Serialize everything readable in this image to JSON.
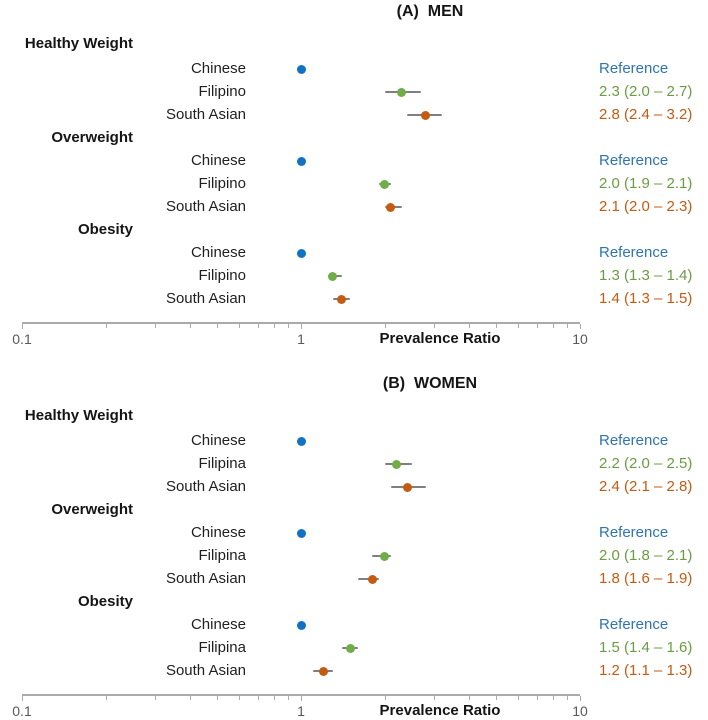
{
  "colors": {
    "chinese_dot": "#1072c4",
    "chinese_text": "#2e74b5",
    "filipino_dot": "#70ad47",
    "filipino_text": "#6b9c44",
    "south_asian_dot": "#c55a11",
    "south_asian_text": "#c55a11",
    "ci_line": "#7f7f7f",
    "axis_line": "#ababab",
    "axis_text": "#595959"
  },
  "chart_data": {
    "type": "scatter",
    "subtype": "forest-plot",
    "x_axis": {
      "scale": "log",
      "min": 0.1,
      "max": 10,
      "label": "Prevalence Ratio",
      "major_ticks": [
        0.1,
        1,
        10
      ],
      "tick_labels": [
        "0.1",
        "1",
        "10"
      ],
      "minor_ticks": [
        0.2,
        0.3,
        0.4,
        0.5,
        0.6,
        0.7,
        0.8,
        0.9,
        2,
        3,
        4,
        5,
        6,
        7,
        8,
        9
      ],
      "grid": false
    },
    "panels": [
      {
        "title": "(A)  MEN",
        "groups": [
          {
            "label": "Healthy Weight",
            "rows": [
              {
                "label": "Chinese",
                "series": "chinese",
                "reference": true,
                "estimate": 1.0,
                "value_text": "Reference"
              },
              {
                "label": "Filipino",
                "series": "filipino",
                "reference": false,
                "estimate": 2.3,
                "ci": [
                  2.0,
                  2.7
                ],
                "value_text": "2.3 (2.0 – 2.7)"
              },
              {
                "label": "South Asian",
                "series": "south_asian",
                "reference": false,
                "estimate": 2.8,
                "ci": [
                  2.4,
                  3.2
                ],
                "value_text": "2.8 (2.4 – 3.2)"
              }
            ]
          },
          {
            "label": "Overweight",
            "rows": [
              {
                "label": "Chinese",
                "series": "chinese",
                "reference": true,
                "estimate": 1.0,
                "value_text": "Reference"
              },
              {
                "label": "Filipino",
                "series": "filipino",
                "reference": false,
                "estimate": 2.0,
                "ci": [
                  1.9,
                  2.1
                ],
                "value_text": "2.0 (1.9 – 2.1)"
              },
              {
                "label": "South Asian",
                "series": "south_asian",
                "reference": false,
                "estimate": 2.1,
                "ci": [
                  2.0,
                  2.3
                ],
                "value_text": "2.1 (2.0 – 2.3)"
              }
            ]
          },
          {
            "label": "Obesity",
            "rows": [
              {
                "label": "Chinese",
                "series": "chinese",
                "reference": true,
                "estimate": 1.0,
                "value_text": "Reference"
              },
              {
                "label": "Filipino",
                "series": "filipino",
                "reference": false,
                "estimate": 1.3,
                "ci": [
                  1.3,
                  1.4
                ],
                "value_text": "1.3 (1.3 – 1.4)"
              },
              {
                "label": "South Asian",
                "series": "south_asian",
                "reference": false,
                "estimate": 1.4,
                "ci": [
                  1.3,
                  1.5
                ],
                "value_text": "1.4 (1.3 – 1.5)"
              }
            ]
          }
        ]
      },
      {
        "title": "(B)  WOMEN",
        "groups": [
          {
            "label": "Healthy Weight",
            "rows": [
              {
                "label": "Chinese",
                "series": "chinese",
                "reference": true,
                "estimate": 1.0,
                "value_text": "Reference"
              },
              {
                "label": "Filipina",
                "series": "filipino",
                "reference": false,
                "estimate": 2.2,
                "ci": [
                  2.0,
                  2.5
                ],
                "value_text": "2.2 (2.0 – 2.5)"
              },
              {
                "label": "South Asian",
                "series": "south_asian",
                "reference": false,
                "estimate": 2.4,
                "ci": [
                  2.1,
                  2.8
                ],
                "value_text": "2.4 (2.1 – 2.8)"
              }
            ]
          },
          {
            "label": "Overweight",
            "rows": [
              {
                "label": "Chinese",
                "series": "chinese",
                "reference": true,
                "estimate": 1.0,
                "value_text": "Reference"
              },
              {
                "label": "Filipina",
                "series": "filipino",
                "reference": false,
                "estimate": 2.0,
                "ci": [
                  1.8,
                  2.1
                ],
                "value_text": "2.0 (1.8 – 2.1)"
              },
              {
                "label": "South Asian",
                "series": "south_asian",
                "reference": false,
                "estimate": 1.8,
                "ci": [
                  1.6,
                  1.9
                ],
                "value_text": "1.8 (1.6 – 1.9)"
              }
            ]
          },
          {
            "label": "Obesity",
            "rows": [
              {
                "label": "Chinese",
                "series": "chinese",
                "reference": true,
                "estimate": 1.0,
                "value_text": "Reference"
              },
              {
                "label": "Filipina",
                "series": "filipino",
                "reference": false,
                "estimate": 1.5,
                "ci": [
                  1.4,
                  1.6
                ],
                "value_text": "1.5 (1.4 – 1.6)"
              },
              {
                "label": "South Asian",
                "series": "south_asian",
                "reference": false,
                "estimate": 1.2,
                "ci": [
                  1.1,
                  1.3
                ],
                "value_text": "1.2 (1.1 – 1.3)"
              }
            ]
          }
        ]
      }
    ]
  }
}
